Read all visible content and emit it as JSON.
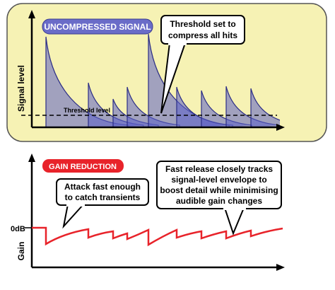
{
  "top": {
    "label": "UNCOMPRESSED SIGNAL",
    "callout": [
      "Threshold set to",
      "compress all hits"
    ],
    "y_axis_label": "Signal level",
    "threshold_label": "Threshold level"
  },
  "bottom": {
    "label": "GAIN REDUCTION",
    "callouts": [
      [
        "Attack fast enough",
        "to catch transients"
      ],
      [
        "Fast release closely tracks",
        "signal-level envelope to",
        "boost detail while minimising",
        "audible gain changes"
      ]
    ],
    "zero_label": "0dB",
    "y_axis_label": "Gain"
  }
}
